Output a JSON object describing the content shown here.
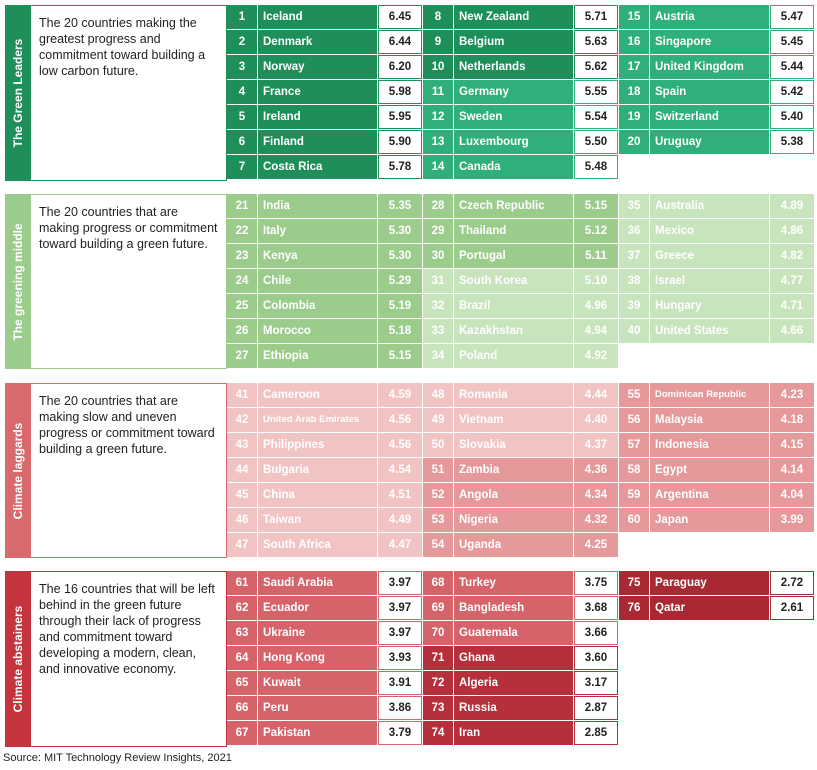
{
  "source": "Source: MIT Technology Review Insights, 2021",
  "chart_data": {
    "type": "table",
    "groups": [
      {
        "label": "The Green Leaders",
        "description": "The 20 countries making the greatest progress and commitment toward building a low carbon future.",
        "color": "#1f8f5a",
        "light": "#2fb07a",
        "border": "#1f8f5a"
      },
      {
        "label": "The greening middle",
        "description": "The 20 countries that are making progress or commitment toward building a green future.",
        "color": "#9ccc8c",
        "light": "#c7e4bc",
        "border": "#9ccc8c"
      },
      {
        "label": "Climate laggards",
        "description": "The 20 countries that are making slow and uneven progress or commitment toward building a green future.",
        "color": "#d86a6e",
        "light": "#f2c3c3",
        "border": "#d86a6e"
      },
      {
        "label": "Climate abstainers",
        "description": "The 16 countries that will be left behind in the green future through their lack of progress and commitment toward developing a modern, clean, and innovative economy.",
        "color": "#c5343e",
        "light": "#d6636a",
        "border": "#c5343e"
      }
    ],
    "rows": [
      {
        "rank": 1,
        "country": "Iceland",
        "score": "6.45"
      },
      {
        "rank": 2,
        "country": "Denmark",
        "score": "6.44"
      },
      {
        "rank": 3,
        "country": "Norway",
        "score": "6.20"
      },
      {
        "rank": 4,
        "country": "France",
        "score": "5.98"
      },
      {
        "rank": 5,
        "country": "Ireland",
        "score": "5.95"
      },
      {
        "rank": 6,
        "country": "Finland",
        "score": "5.90"
      },
      {
        "rank": 7,
        "country": "Costa Rica",
        "score": "5.78"
      },
      {
        "rank": 8,
        "country": "New Zealand",
        "score": "5.71"
      },
      {
        "rank": 9,
        "country": "Belgium",
        "score": "5.63"
      },
      {
        "rank": 10,
        "country": "Netherlands",
        "score": "5.62"
      },
      {
        "rank": 11,
        "country": "Germany",
        "score": "5.55"
      },
      {
        "rank": 12,
        "country": "Sweden",
        "score": "5.54"
      },
      {
        "rank": 13,
        "country": "Luxembourg",
        "score": "5.50"
      },
      {
        "rank": 14,
        "country": "Canada",
        "score": "5.48"
      },
      {
        "rank": 15,
        "country": "Austria",
        "score": "5.47"
      },
      {
        "rank": 16,
        "country": "Singapore",
        "score": "5.45"
      },
      {
        "rank": 17,
        "country": "United Kingdom",
        "score": "5.44"
      },
      {
        "rank": 18,
        "country": "Spain",
        "score": "5.42"
      },
      {
        "rank": 19,
        "country": "Switzerland",
        "score": "5.40"
      },
      {
        "rank": 20,
        "country": "Uruguay",
        "score": "5.38"
      },
      {
        "rank": 21,
        "country": "India",
        "score": "5.35"
      },
      {
        "rank": 22,
        "country": "Italy",
        "score": "5.30"
      },
      {
        "rank": 23,
        "country": "Kenya",
        "score": "5.30"
      },
      {
        "rank": 24,
        "country": "Chile",
        "score": "5.29"
      },
      {
        "rank": 25,
        "country": "Colombia",
        "score": "5.19"
      },
      {
        "rank": 26,
        "country": "Morocco",
        "score": "5.18"
      },
      {
        "rank": 27,
        "country": "Ethiopia",
        "score": "5.15"
      },
      {
        "rank": 28,
        "country": "Czech Republic",
        "score": "5.15"
      },
      {
        "rank": 29,
        "country": "Thailand",
        "score": "5.12"
      },
      {
        "rank": 30,
        "country": "Portugal",
        "score": "5.11"
      },
      {
        "rank": 31,
        "country": "South Korea",
        "score": "5.10"
      },
      {
        "rank": 32,
        "country": "Brazil",
        "score": "4.96"
      },
      {
        "rank": 33,
        "country": "Kazakhstan",
        "score": "4.94"
      },
      {
        "rank": 34,
        "country": "Poland",
        "score": "4.92"
      },
      {
        "rank": 35,
        "country": "Australia",
        "score": "4.89"
      },
      {
        "rank": 36,
        "country": "Mexico",
        "score": "4.86"
      },
      {
        "rank": 37,
        "country": "Greece",
        "score": "4.82"
      },
      {
        "rank": 38,
        "country": "Israel",
        "score": "4.77"
      },
      {
        "rank": 39,
        "country": "Hungary",
        "score": "4.71"
      },
      {
        "rank": 40,
        "country": "United States",
        "score": "4.66"
      },
      {
        "rank": 41,
        "country": "Cameroon",
        "score": "4.59"
      },
      {
        "rank": 42,
        "country": "United Arab Emirates",
        "score": "4.56"
      },
      {
        "rank": 43,
        "country": "Philippines",
        "score": "4.56"
      },
      {
        "rank": 44,
        "country": "Bulgaria",
        "score": "4.54"
      },
      {
        "rank": 45,
        "country": "China",
        "score": "4.51"
      },
      {
        "rank": 46,
        "country": "Taiwan",
        "score": "4.49"
      },
      {
        "rank": 47,
        "country": "South Africa",
        "score": "4.47"
      },
      {
        "rank": 48,
        "country": "Romania",
        "score": "4.44"
      },
      {
        "rank": 49,
        "country": "Vietnam",
        "score": "4.40"
      },
      {
        "rank": 50,
        "country": "Slovakia",
        "score": "4.37"
      },
      {
        "rank": 51,
        "country": "Zambia",
        "score": "4.36"
      },
      {
        "rank": 52,
        "country": "Angola",
        "score": "4.34"
      },
      {
        "rank": 53,
        "country": "Nigeria",
        "score": "4.32"
      },
      {
        "rank": 54,
        "country": "Uganda",
        "score": "4.25"
      },
      {
        "rank": 55,
        "country": "Dominican Republic",
        "score": "4.23"
      },
      {
        "rank": 56,
        "country": "Malaysia",
        "score": "4.18"
      },
      {
        "rank": 57,
        "country": "Indonesia",
        "score": "4.15"
      },
      {
        "rank": 58,
        "country": "Egypt",
        "score": "4.14"
      },
      {
        "rank": 59,
        "country": "Argentina",
        "score": "4.04"
      },
      {
        "rank": 60,
        "country": "Japan",
        "score": "3.99"
      },
      {
        "rank": 61,
        "country": "Saudi Arabia",
        "score": "3.97"
      },
      {
        "rank": 62,
        "country": "Ecuador",
        "score": "3.97"
      },
      {
        "rank": 63,
        "country": "Ukraine",
        "score": "3.97"
      },
      {
        "rank": 64,
        "country": "Hong Kong",
        "score": "3.93"
      },
      {
        "rank": 65,
        "country": "Kuwait",
        "score": "3.91"
      },
      {
        "rank": 66,
        "country": "Peru",
        "score": "3.86"
      },
      {
        "rank": 67,
        "country": "Pakistan",
        "score": "3.79"
      },
      {
        "rank": 68,
        "country": "Turkey",
        "score": "3.75"
      },
      {
        "rank": 69,
        "country": "Bangladesh",
        "score": "3.68"
      },
      {
        "rank": 70,
        "country": "Guatemala",
        "score": "3.66"
      },
      {
        "rank": 71,
        "country": "Ghana",
        "score": "3.60"
      },
      {
        "rank": 72,
        "country": "Algeria",
        "score": "3.17"
      },
      {
        "rank": 73,
        "country": "Russia",
        "score": "2.87"
      },
      {
        "rank": 74,
        "country": "Iran",
        "score": "2.85"
      },
      {
        "rank": 75,
        "country": "Paraguay",
        "score": "2.72"
      },
      {
        "rank": 76,
        "country": "Qatar",
        "score": "2.61"
      }
    ],
    "cell_colors": {
      "1": "#1f8f5a",
      "2": "#1f8f5a",
      "3": "#1f8f5a",
      "4": "#1f8f5a",
      "5": "#1f8f5a",
      "6": "#1f8f5a",
      "7": "#1f8f5a",
      "8": "#1f8f5a",
      "9": "#1f8f5a",
      "10": "#1f8f5a",
      "11": "#2fb07a",
      "12": "#2fb07a",
      "13": "#2fb07a",
      "14": "#2fb07a",
      "15": "#2fb07a",
      "16": "#2fb07a",
      "17": "#2fb07a",
      "18": "#2fb07a",
      "19": "#2fb07a",
      "20": "#2fb07a",
      "21": "#9ccc8c",
      "22": "#9ccc8c",
      "23": "#9ccc8c",
      "24": "#9ccc8c",
      "25": "#9ccc8c",
      "26": "#9ccc8c",
      "27": "#9ccc8c",
      "28": "#9ccc8c",
      "29": "#9ccc8c",
      "30": "#9ccc8c",
      "31": "#c7e4bc",
      "32": "#c7e4bc",
      "33": "#c7e4bc",
      "34": "#c7e4bc",
      "35": "#c7e4bc",
      "36": "#c7e4bc",
      "37": "#c7e4bc",
      "38": "#c7e4bc",
      "39": "#c7e4bc",
      "40": "#c7e4bc",
      "41": "#f2c3c3",
      "42": "#f2c3c3",
      "43": "#f2c3c3",
      "44": "#f2c3c3",
      "45": "#f2c3c3",
      "46": "#f2c3c3",
      "47": "#f2c3c3",
      "48": "#f2c3c3",
      "49": "#f2c3c3",
      "50": "#f2c3c3",
      "51": "#e6999b",
      "52": "#e6999b",
      "53": "#e6999b",
      "54": "#e6999b",
      "55": "#e6999b",
      "56": "#e6999b",
      "57": "#e6999b",
      "58": "#e6999b",
      "59": "#e6999b",
      "60": "#e6999b",
      "61": "#d6636a",
      "62": "#d6636a",
      "63": "#d6636a",
      "64": "#d6636a",
      "65": "#d6636a",
      "66": "#d6636a",
      "67": "#d6636a",
      "68": "#d6636a",
      "69": "#d6636a",
      "70": "#d6636a",
      "71": "#b5303a",
      "72": "#b5303a",
      "73": "#b5303a",
      "74": "#b5303a",
      "75": "#a82833",
      "76": "#a82833"
    }
  }
}
